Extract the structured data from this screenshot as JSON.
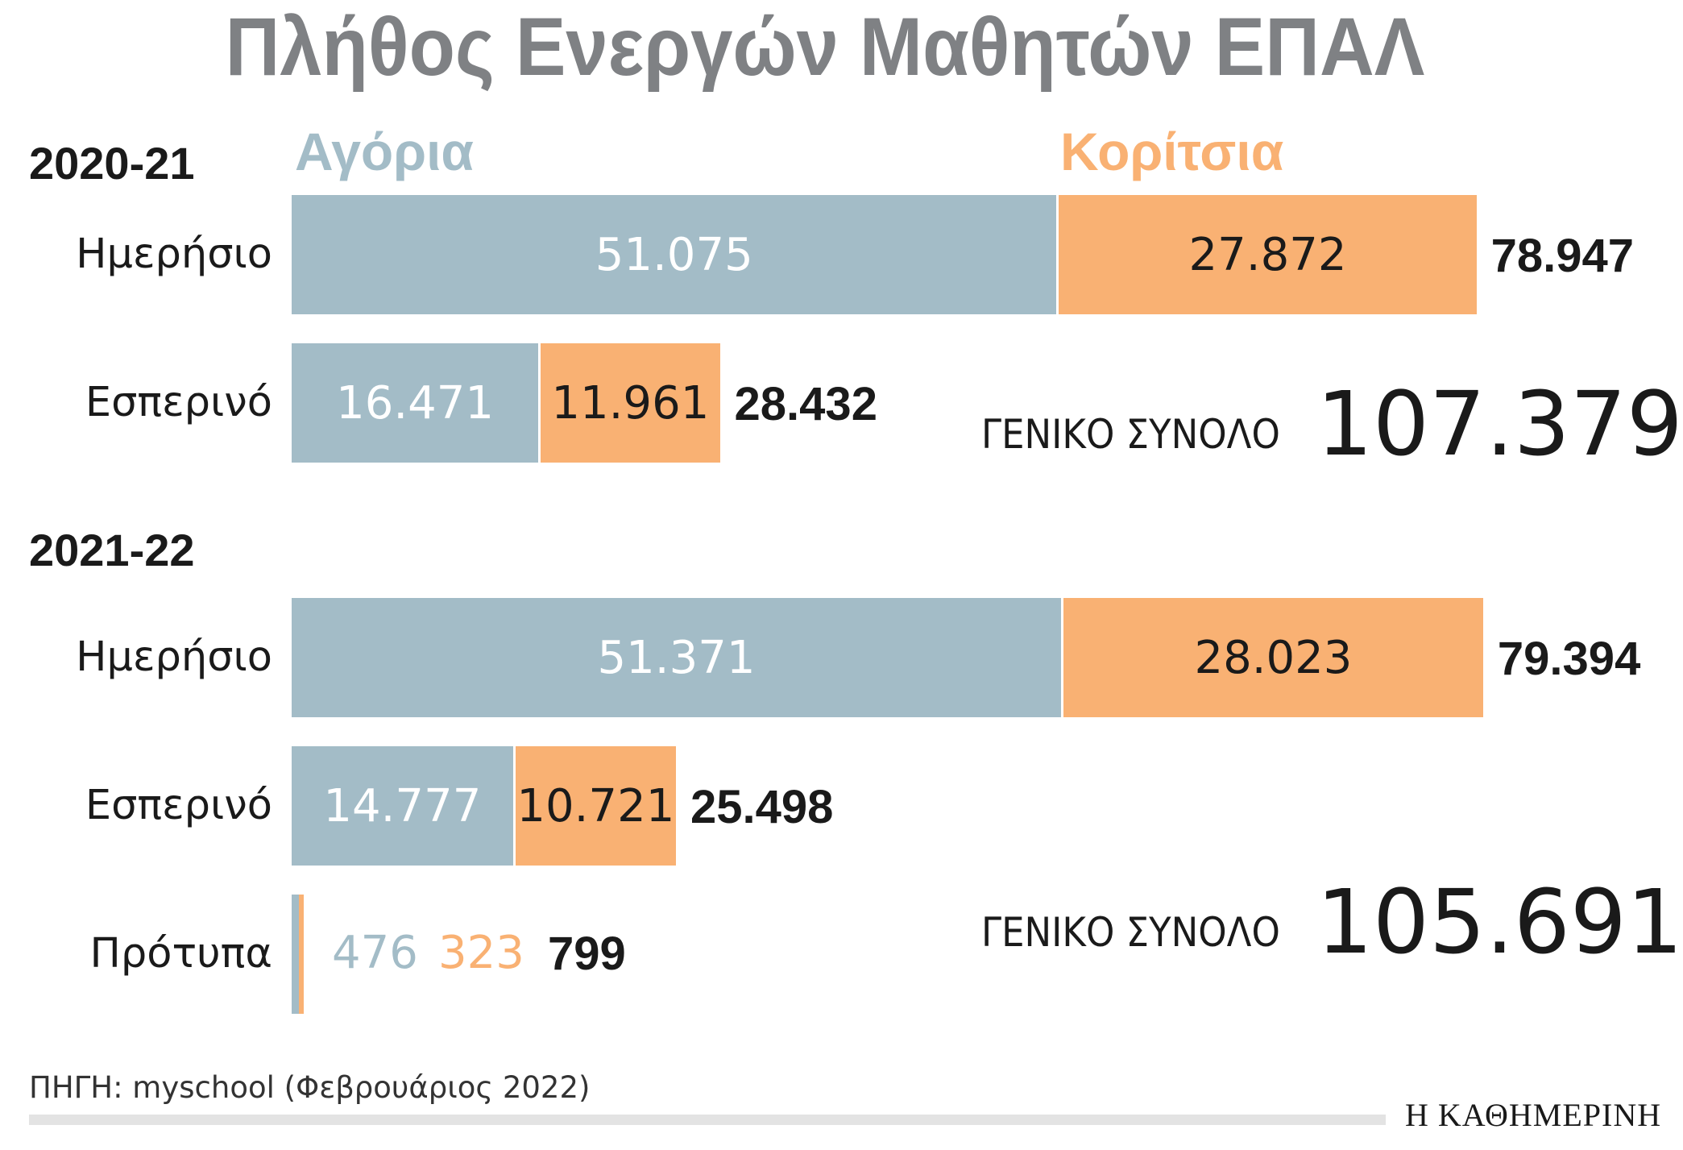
{
  "title": "Πλήθος Ενεργών Μαθητών ΕΠΑΛ",
  "legend": {
    "boys": "Αγόρια",
    "girls": "Κορίτσια"
  },
  "colors": {
    "boys": "#a3bcc7",
    "girls": "#f9b173",
    "title": "#7f8184"
  },
  "grand_total_label": "ΓΕΝΙΚΟ ΣΥΝΟΛΟ",
  "chart_data": {
    "type": "bar",
    "orientation": "horizontal",
    "stacked": true,
    "series_names": [
      "Αγόρια",
      "Κορίτσια"
    ],
    "groups": [
      {
        "year": "2020-21",
        "grand_total": "107.379",
        "rows": [
          {
            "label": "Ημερήσιο",
            "boys": 51075,
            "girls": 27872,
            "boys_text": "51.075",
            "girls_text": "27.872",
            "total_text": "78.947"
          },
          {
            "label": "Εσπερινό",
            "boys": 16471,
            "girls": 11961,
            "boys_text": "16.471",
            "girls_text": "11.961",
            "total_text": "28.432"
          }
        ]
      },
      {
        "year": "2021-22",
        "grand_total": "105.691",
        "rows": [
          {
            "label": "Ημερήσιο",
            "boys": 51371,
            "girls": 28023,
            "boys_text": "51.371",
            "girls_text": "28.023",
            "total_text": "79.394"
          },
          {
            "label": "Εσπερινό",
            "boys": 14777,
            "girls": 10721,
            "boys_text": "14.777",
            "girls_text": "10.721",
            "total_text": "25.498"
          },
          {
            "label": "Πρότυπα",
            "boys": 476,
            "girls": 323,
            "boys_text": "476",
            "girls_text": "323",
            "total_text": "799"
          }
        ]
      }
    ]
  },
  "source": "ΠΗΓΗ: myschool (Φεβρουάριος 2022)",
  "logo": "Η ΚΑΘΗΜΕΡΙΝΗ"
}
